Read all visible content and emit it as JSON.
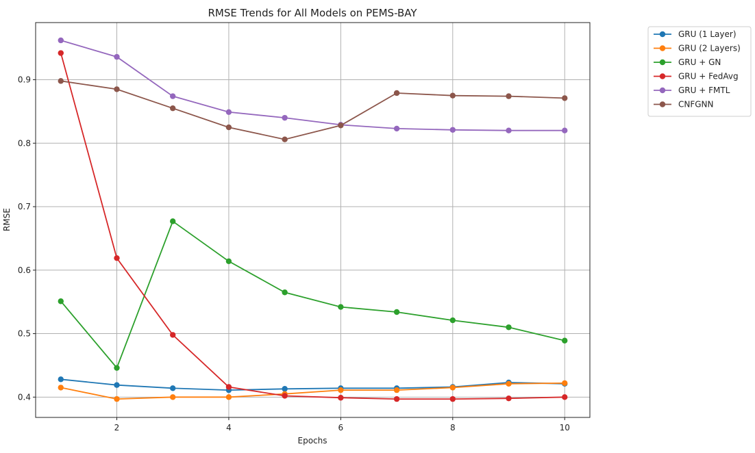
{
  "chart_data": {
    "type": "line",
    "title": "RMSE Trends for All Models on PEMS-BAY",
    "xlabel": "Epochs",
    "ylabel": "RMSE",
    "xlim": [
      0.55,
      10.45
    ],
    "ylim": [
      0.368,
      0.99
    ],
    "xticks": [
      2,
      4,
      6,
      8,
      10
    ],
    "yticks": [
      0.4,
      0.5,
      0.6,
      0.7,
      0.8,
      0.9
    ],
    "grid": true,
    "legend_position": "outside-top-right",
    "x": [
      1,
      2,
      3,
      4,
      5,
      6,
      7,
      8,
      9,
      10
    ],
    "series": [
      {
        "name": "GRU (1 Layer)",
        "color": "#1f77b4",
        "values": [
          0.428,
          0.419,
          0.414,
          0.411,
          0.413,
          0.414,
          0.414,
          0.416,
          0.423,
          0.421
        ]
      },
      {
        "name": "GRU (2 Layers)",
        "color": "#ff7f0e",
        "values": [
          0.415,
          0.397,
          0.4,
          0.4,
          0.405,
          0.411,
          0.411,
          0.415,
          0.421,
          0.422
        ]
      },
      {
        "name": "GRU + GN",
        "color": "#2ca02c",
        "values": [
          0.551,
          0.446,
          0.677,
          0.614,
          0.565,
          0.542,
          0.534,
          0.521,
          0.51,
          0.489
        ]
      },
      {
        "name": "GRU + FedAvg",
        "color": "#d62728",
        "values": [
          0.942,
          0.619,
          0.498,
          0.416,
          0.402,
          0.399,
          0.397,
          0.397,
          0.398,
          0.4
        ]
      },
      {
        "name": "GRU + FMTL",
        "color": "#9467bd",
        "values": [
          0.962,
          0.936,
          0.874,
          0.849,
          0.84,
          0.829,
          0.823,
          0.821,
          0.82,
          0.82
        ]
      },
      {
        "name": "CNFGNN",
        "color": "#8c564b",
        "values": [
          0.898,
          0.885,
          0.855,
          0.825,
          0.806,
          0.828,
          0.879,
          0.875,
          0.874,
          0.871
        ]
      }
    ]
  }
}
